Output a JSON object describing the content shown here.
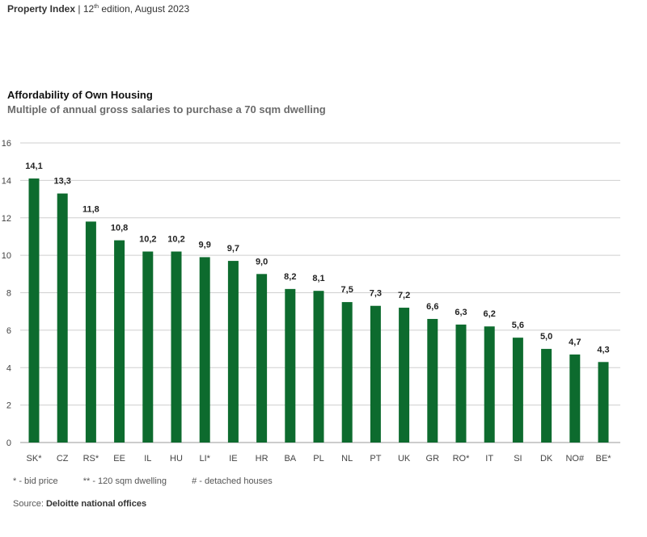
{
  "header": {
    "publication": "Property Index",
    "separator": "|",
    "edition_num": "12",
    "edition_sup": "th",
    "edition_rest": " edition, August 2023"
  },
  "chart_data": {
    "type": "bar",
    "title": "Affordability of Own Housing",
    "subtitle": "Multiple of annual gross salaries to purchase a 70 sqm dwelling",
    "categories": [
      "SK*",
      "CZ",
      "RS*",
      "EE",
      "IL",
      "HU",
      "LI*",
      "IE",
      "HR",
      "BA",
      "PL",
      "NL",
      "PT",
      "UK",
      "GR",
      "RO*",
      "IT",
      "SI",
      "DK",
      "NO#",
      "BE*"
    ],
    "values": [
      14.1,
      13.3,
      11.8,
      10.8,
      10.2,
      10.2,
      9.9,
      9.7,
      9.0,
      8.2,
      8.1,
      7.5,
      7.3,
      7.2,
      6.6,
      6.3,
      6.2,
      5.6,
      5.0,
      4.7,
      4.3
    ],
    "value_labels": [
      "14,1",
      "13,3",
      "11,8",
      "10,8",
      "10,2",
      "10,2",
      "9,9",
      "9,7",
      "9,0",
      "8,2",
      "8,1",
      "7,5",
      "7,3",
      "7,2",
      "6,6",
      "6,3",
      "6,2",
      "5,6",
      "5,0",
      "4,7",
      "4,3"
    ],
    "ylim": [
      0,
      16
    ],
    "yticks": [
      0,
      2,
      4,
      6,
      8,
      10,
      12,
      14,
      16
    ],
    "grid": true,
    "bar_color": "#0d6b2e",
    "grid_color": "#cfcfcf"
  },
  "footnotes": [
    "* - bid price",
    "** - 120 sqm dwelling",
    "# - detached houses"
  ],
  "source": {
    "label": "Source:",
    "value": "Deloitte national offices"
  }
}
